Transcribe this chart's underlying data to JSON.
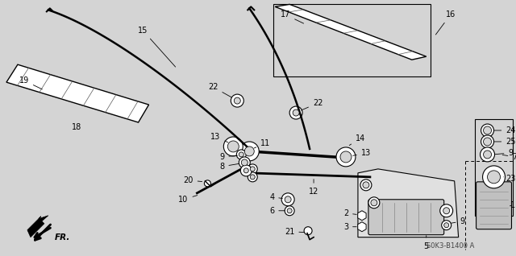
{
  "bg_color": "#d4d4d4",
  "fig_width": 6.4,
  "fig_height": 3.18,
  "dpi": 100,
  "watermark": "S0K3-B1400 A",
  "fr_label": "FR."
}
